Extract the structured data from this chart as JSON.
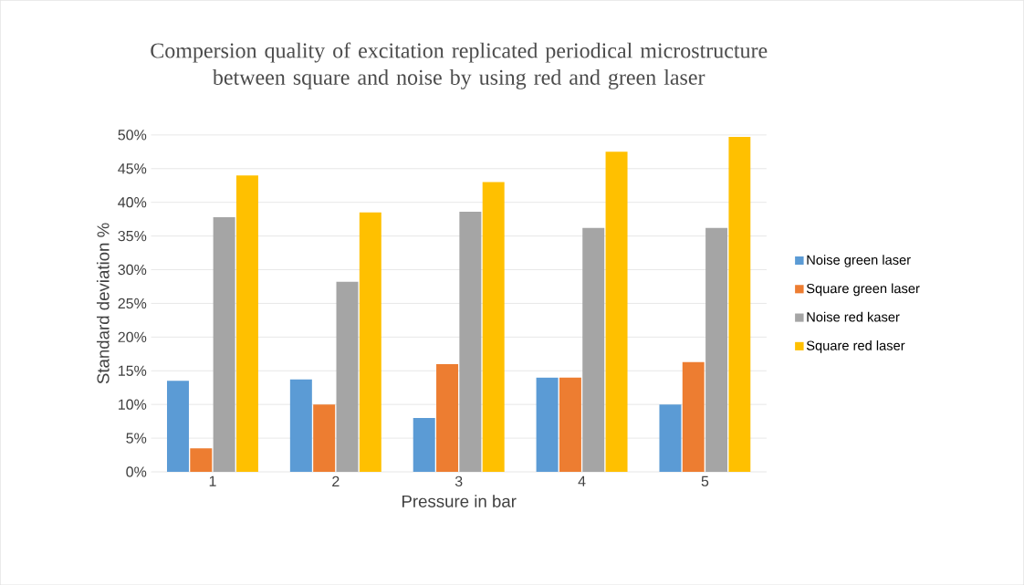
{
  "chart_data": {
    "type": "bar",
    "title": "Compersion quality of excitation replicated periodical microstructure between square and noise by using red and green laser",
    "xlabel": "Pressure in bar",
    "ylabel": "Standard deviation %",
    "categories": [
      "1",
      "2",
      "3",
      "4",
      "5"
    ],
    "series": [
      {
        "name": "Noise green laser",
        "color": "#5b9bd5",
        "values": [
          13.5,
          13.7,
          8,
          14,
          10
        ]
      },
      {
        "name": "Square green laser",
        "color": "#ed7d31",
        "values": [
          3.5,
          10,
          16,
          14,
          16.3
        ]
      },
      {
        "name": "Noise red kaser",
        "color": "#a5a5a5",
        "values": [
          37.8,
          28.2,
          38.6,
          36.2,
          36.2
        ]
      },
      {
        "name": "Square red laser",
        "color": "#ffc000",
        "values": [
          44,
          38.5,
          43,
          47.5,
          49.7
        ]
      }
    ],
    "ylim": [
      0,
      50
    ],
    "yticks": [
      {
        "value": 0,
        "label": "0%"
      },
      {
        "value": 5,
        "label": "5%"
      },
      {
        "value": 10,
        "label": "10%"
      },
      {
        "value": 15,
        "label": "15%"
      },
      {
        "value": 20,
        "label": "20%"
      },
      {
        "value": 25,
        "label": "25%"
      },
      {
        "value": 30,
        "label": "30%"
      },
      {
        "value": 35,
        "label": "35%"
      },
      {
        "value": 40,
        "label": "40%"
      },
      {
        "value": 45,
        "label": "45%"
      },
      {
        "value": 50,
        "label": "50%"
      }
    ],
    "grid": "y",
    "legend": "right"
  }
}
